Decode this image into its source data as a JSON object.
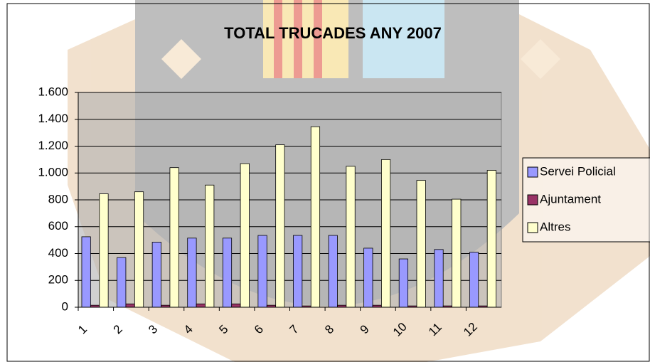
{
  "chart_data": {
    "type": "bar",
    "title": "TOTAL TRUCADES ANY 2007",
    "categories": [
      "1",
      "2",
      "3",
      "4",
      "5",
      "6",
      "7",
      "8",
      "9",
      "10",
      "11",
      "12"
    ],
    "series": [
      {
        "name": "Servei Policial",
        "color": "#9999ff",
        "values": [
          525,
          370,
          485,
          515,
          515,
          535,
          535,
          535,
          440,
          360,
          430,
          410
        ]
      },
      {
        "name": "Ajuntament",
        "color": "#993366",
        "values": [
          15,
          25,
          15,
          25,
          25,
          15,
          10,
          15,
          15,
          10,
          10,
          10
        ]
      },
      {
        "name": "Altres",
        "color": "#ffffcc",
        "values": [
          845,
          860,
          1040,
          910,
          1070,
          1210,
          1345,
          1050,
          1100,
          945,
          805,
          1020
        ]
      }
    ],
    "ylim": [
      0,
      1600
    ],
    "yticks": [
      0,
      200,
      400,
      600,
      800,
      {
        "value": 1000,
        "label": "1.000"
      },
      {
        "value": 1200,
        "label": "1.200"
      },
      {
        "value": 1400,
        "label": "1.400"
      },
      {
        "value": 1600,
        "label": "1.600"
      }
    ],
    "grid": true,
    "legend": "right"
  }
}
